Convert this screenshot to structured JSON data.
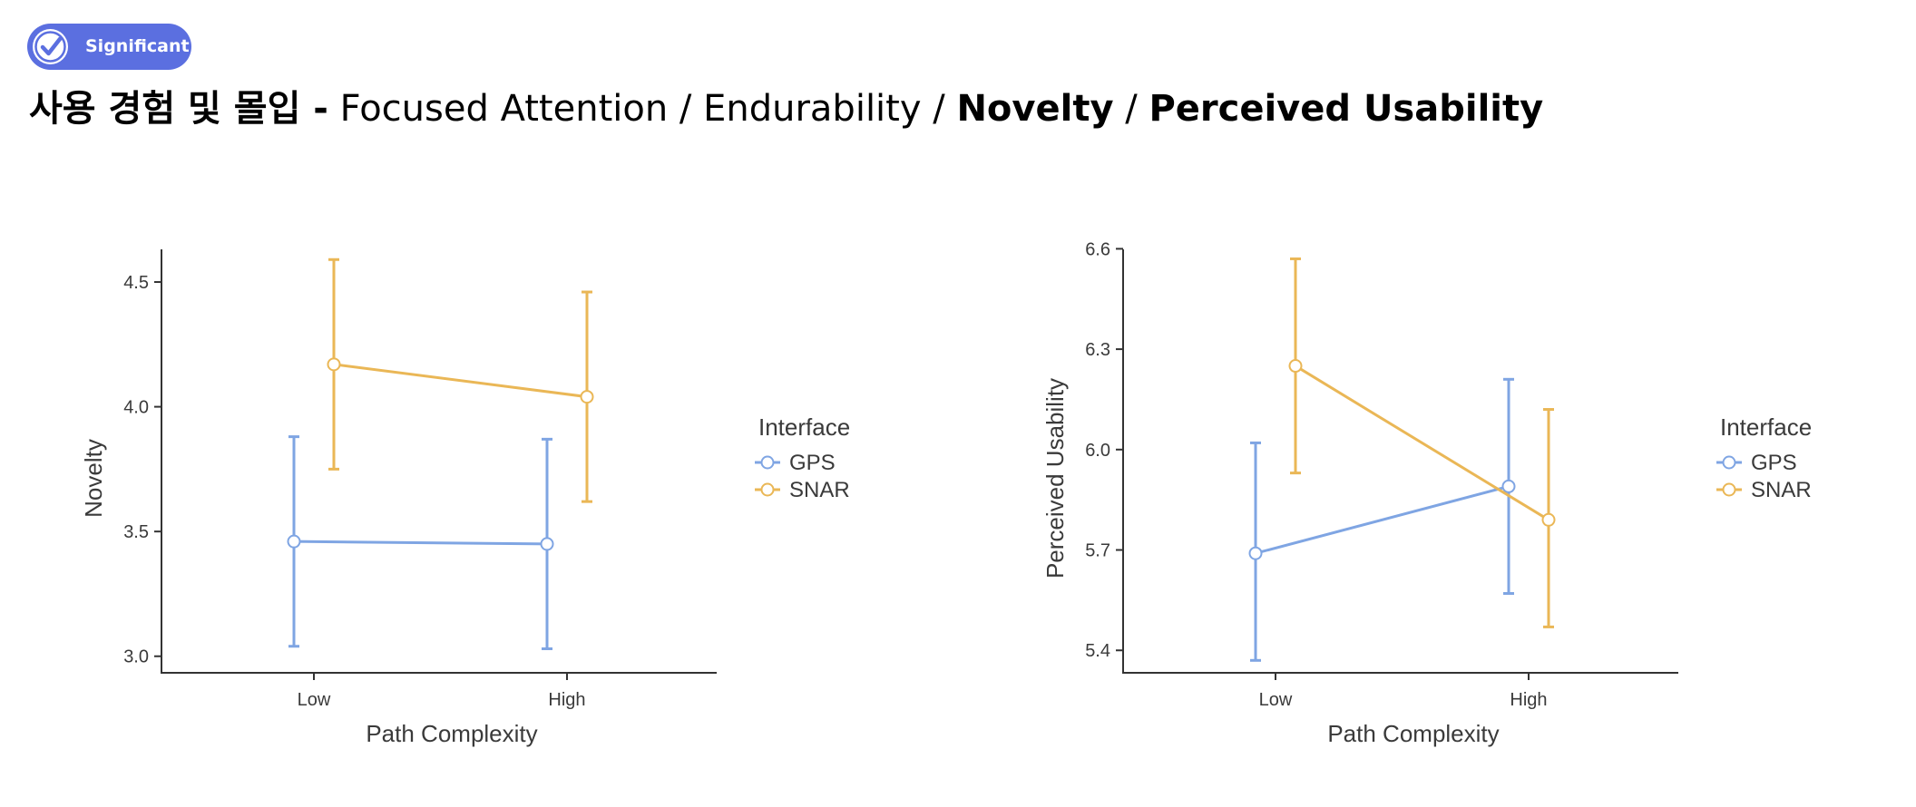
{
  "badge": {
    "label": "Significant",
    "icon": "check-circle-icon",
    "color": "#5b6fe0"
  },
  "title": {
    "korean_prefix": "사용 경험 및 몰입 -",
    "items": [
      "Focused Attention",
      "Endurability",
      "Novelty",
      "Perceived Usability"
    ],
    "separator": "/"
  },
  "colors": {
    "GPS": "#7fa5e3",
    "SNAR": "#eab756"
  },
  "chart_data": [
    {
      "type": "line",
      "xlabel": "Path Complexity",
      "ylabel": "Novelty",
      "categories": [
        "Low",
        "High"
      ],
      "ylim": [
        2.97,
        4.66
      ],
      "yticks": [
        3.0,
        3.5,
        4.0,
        4.5
      ],
      "ytick_labels": [
        "3.0",
        "3.5",
        "4.0",
        "4.5"
      ],
      "grid": false,
      "legend": {
        "title": "Interface",
        "placement": "right"
      },
      "series": [
        {
          "name": "GPS",
          "values": [
            3.46,
            3.45
          ],
          "lower": [
            3.04,
            3.03
          ],
          "upper": [
            3.88,
            3.87
          ]
        },
        {
          "name": "SNAR",
          "values": [
            4.17,
            4.04
          ],
          "lower": [
            3.75,
            3.62
          ],
          "upper": [
            4.59,
            4.46
          ]
        }
      ]
    },
    {
      "type": "line",
      "xlabel": "Path Complexity",
      "ylabel": "Perceived Usability",
      "categories": [
        "Low",
        "High"
      ],
      "ylim": [
        5.36,
        6.62
      ],
      "yticks": [
        5.4,
        5.7,
        6.0,
        6.3,
        6.6
      ],
      "ytick_labels": [
        "5.4",
        "5.7",
        "6.0",
        "6.3",
        "6.6"
      ],
      "grid": false,
      "legend": {
        "title": "Interface",
        "placement": "right"
      },
      "series": [
        {
          "name": "GPS",
          "values": [
            5.69,
            5.89
          ],
          "lower": [
            5.37,
            5.57
          ],
          "upper": [
            6.02,
            6.21
          ]
        },
        {
          "name": "SNAR",
          "values": [
            6.25,
            5.79
          ],
          "lower": [
            5.93,
            5.47
          ],
          "upper": [
            6.57,
            6.12
          ]
        }
      ]
    }
  ]
}
